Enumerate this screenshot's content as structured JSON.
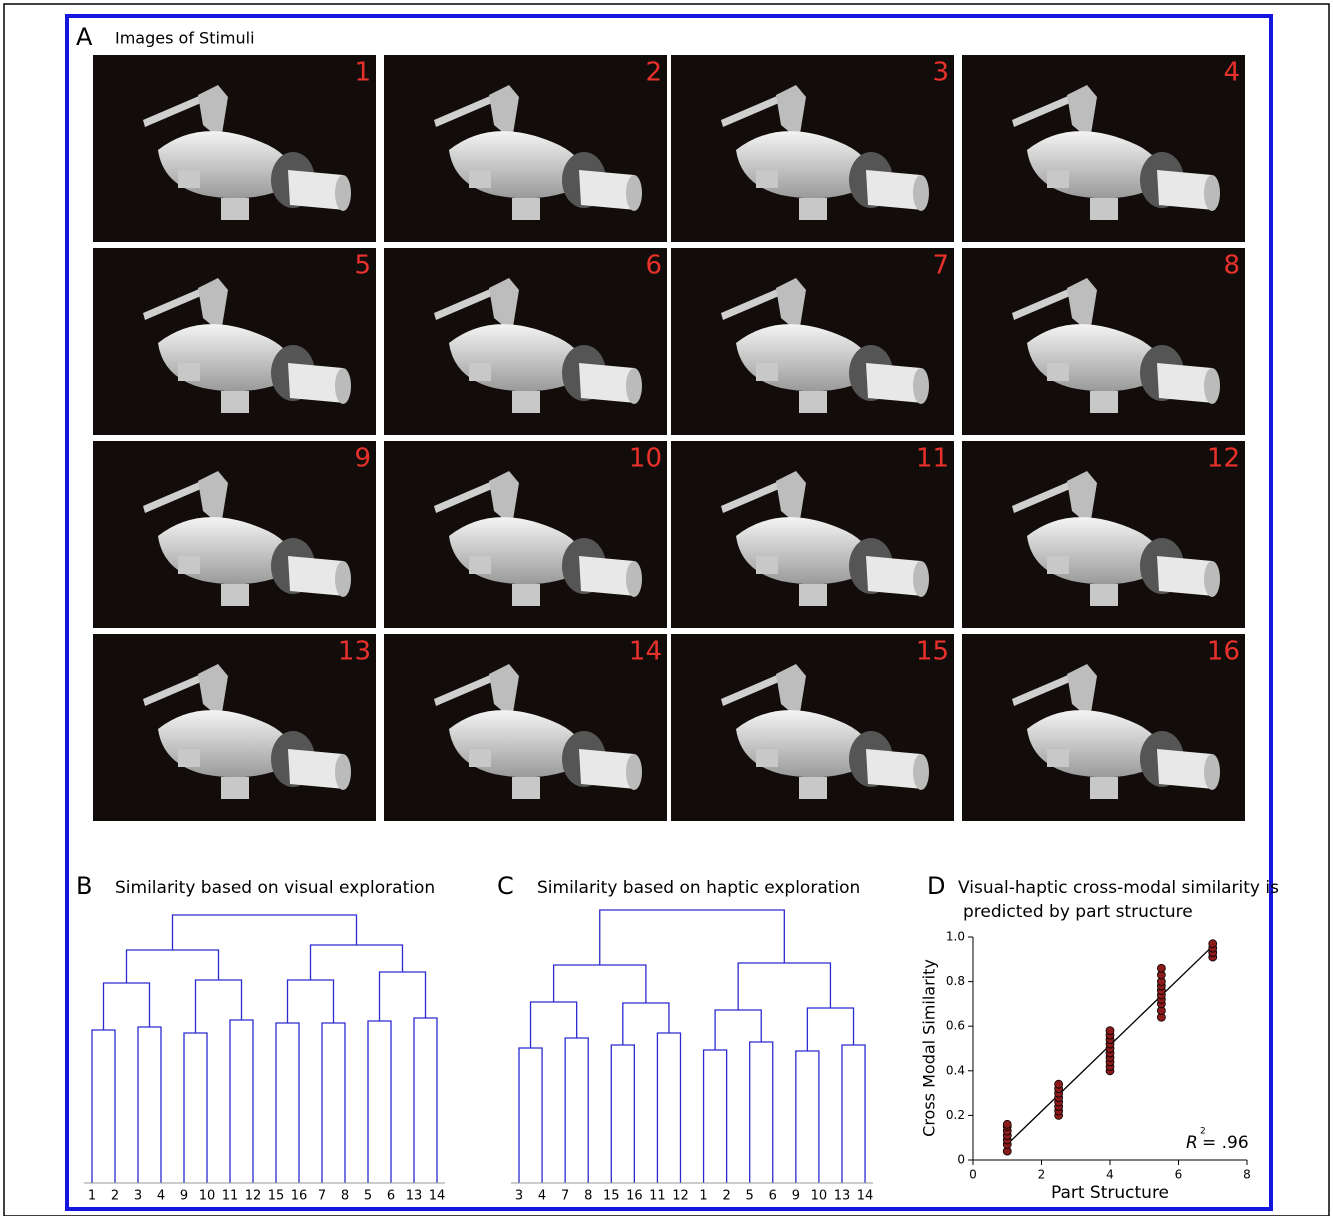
{
  "panel_a": {
    "label": "A",
    "title": "Images of Stimuli",
    "images": [
      "1",
      "2",
      "3",
      "4",
      "5",
      "6",
      "7",
      "8",
      "9",
      "10",
      "11",
      "12",
      "13",
      "14",
      "15",
      "16"
    ]
  },
  "panel_b": {
    "label": "B",
    "title": "Similarity based on visual exploration",
    "leaves": [
      "1",
      "2",
      "3",
      "4",
      "9",
      "10",
      "11",
      "12",
      "15",
      "16",
      "7",
      "8",
      "5",
      "6",
      "13",
      "14"
    ]
  },
  "panel_c": {
    "label": "C",
    "title": "Similarity based on haptic exploration",
    "leaves": [
      "3",
      "4",
      "7",
      "8",
      "15",
      "16",
      "11",
      "12",
      "1",
      "2",
      "5",
      "6",
      "9",
      "10",
      "13",
      "14"
    ]
  },
  "chart_data": {
    "type": "scatter",
    "panel_label": "D",
    "title_lines": [
      "Visual-haptic cross-modal similarity is",
      "predicted by part structure"
    ],
    "x_label": "Part Structure",
    "y_label": "Cross Modal Similarity",
    "annotation": {
      "symbol": "R",
      "superscript": "2",
      "text": "= .96"
    },
    "xlim": [
      0,
      8
    ],
    "xticks": [
      0,
      2,
      4,
      6,
      8
    ],
    "ylim": [
      0,
      1
    ],
    "yticks": [
      0,
      0.2,
      0.4,
      0.6,
      0.8,
      {
        "value": 1,
        "label": "1.0"
      }
    ],
    "series": [
      {
        "color": "#8b1a1a",
        "x": [
          1,
          1,
          1,
          1,
          1,
          1,
          1,
          2.5,
          2.5,
          2.5,
          2.5,
          2.5,
          2.5,
          2.5,
          2.5,
          4,
          4,
          4,
          4,
          4,
          4,
          4,
          4,
          4,
          4,
          5.5,
          5.5,
          5.5,
          5.5,
          5.5,
          5.5,
          5.5,
          5.5,
          5.5,
          5.5,
          7,
          7,
          7,
          7
        ],
        "y": [
          0.04,
          0.07,
          0.09,
          0.11,
          0.13,
          0.15,
          0.16,
          0.2,
          0.22,
          0.24,
          0.26,
          0.28,
          0.3,
          0.32,
          0.34,
          0.4,
          0.42,
          0.44,
          0.46,
          0.48,
          0.5,
          0.52,
          0.54,
          0.56,
          0.58,
          0.64,
          0.67,
          0.7,
          0.72,
          0.74,
          0.76,
          0.78,
          0.8,
          0.83,
          0.86,
          0.91,
          0.93,
          0.95,
          0.97
        ]
      }
    ],
    "fit": {
      "x": [
        1,
        7
      ],
      "y": [
        0.07,
        0.96
      ]
    }
  }
}
